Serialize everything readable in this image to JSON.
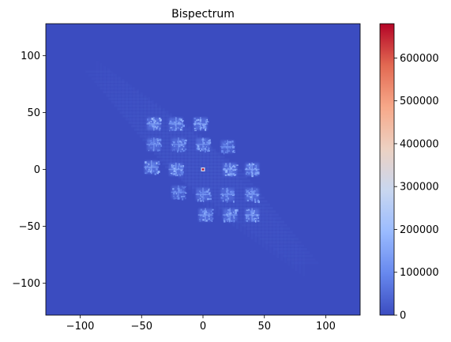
{
  "chart_data": {
    "type": "heatmap",
    "title": "Bispectrum",
    "xlabel": "",
    "ylabel": "",
    "xlim": [
      -128,
      128
    ],
    "ylim": [
      -128,
      128
    ],
    "x_ticks": [
      -100,
      -50,
      0,
      50,
      100
    ],
    "y_ticks": [
      -100,
      -50,
      0,
      50,
      100
    ],
    "colorbar": {
      "colormap": "coolwarm",
      "range": [
        0,
        680000
      ],
      "ticks": [
        0,
        100000,
        200000,
        300000,
        400000,
        500000,
        600000
      ],
      "colors": [
        "#3b4cc0",
        "#6788ee",
        "#9abbff",
        "#c9d7f0",
        "#edd1c2",
        "#f7a889",
        "#e26952",
        "#b40426"
      ]
    },
    "background_value": 0,
    "peak": {
      "x": 0,
      "y": 0,
      "value": 680000
    },
    "blobs": [
      {
        "x": -40,
        "y": 40,
        "value": 160000
      },
      {
        "x": -22,
        "y": 40,
        "value": 150000
      },
      {
        "x": -2,
        "y": 40,
        "value": 160000
      },
      {
        "x": -40,
        "y": 22,
        "value": 140000
      },
      {
        "x": -20,
        "y": 22,
        "value": 130000
      },
      {
        "x": 0,
        "y": 22,
        "value": 140000
      },
      {
        "x": 20,
        "y": 20,
        "value": 120000
      },
      {
        "x": -42,
        "y": 2,
        "value": 170000
      },
      {
        "x": -22,
        "y": 0,
        "value": 160000
      },
      {
        "x": 22,
        "y": 0,
        "value": 160000
      },
      {
        "x": 40,
        "y": 0,
        "value": 170000
      },
      {
        "x": -20,
        "y": -20,
        "value": 120000
      },
      {
        "x": 0,
        "y": -22,
        "value": 140000
      },
      {
        "x": 20,
        "y": -22,
        "value": 130000
      },
      {
        "x": 40,
        "y": -22,
        "value": 140000
      },
      {
        "x": 2,
        "y": -40,
        "value": 160000
      },
      {
        "x": 22,
        "y": -40,
        "value": 150000
      },
      {
        "x": 40,
        "y": -40,
        "value": 160000
      }
    ],
    "faint_band": {
      "direction": "y = -x",
      "extent": [
        -85,
        85
      ],
      "value": 45000
    }
  }
}
